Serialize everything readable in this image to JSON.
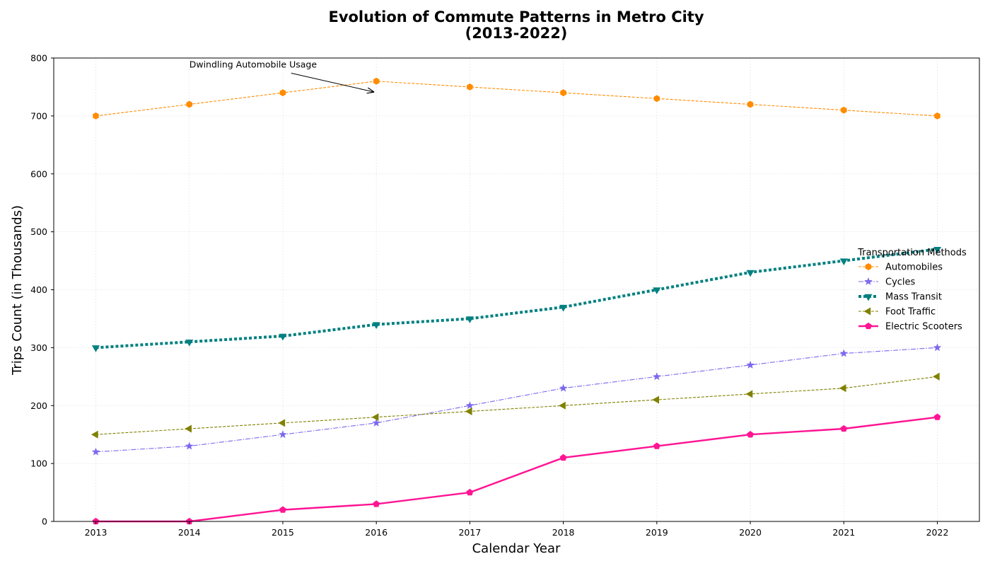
{
  "chart_data": {
    "type": "line",
    "title_line1": "Evolution of Commute Patterns in Metro City",
    "title_line2": "(2013-2022)",
    "xlabel": "Calendar Year",
    "ylabel": "Trips Count (in Thousands)",
    "x": [
      2013,
      2014,
      2015,
      2016,
      2017,
      2018,
      2019,
      2020,
      2021,
      2022
    ],
    "xlim": [
      2012.55,
      2022.45
    ],
    "ylim": [
      0,
      800
    ],
    "yticks": [
      0,
      100,
      200,
      300,
      400,
      500,
      600,
      700,
      800
    ],
    "grid": true,
    "legend_title": "Transportation Methods",
    "legend_position": "center-right",
    "series": [
      {
        "name": "Automobiles",
        "color": "#ff8c00",
        "dash": "dashed-thin",
        "marker": "hexagon",
        "values": [
          700,
          720,
          740,
          760,
          750,
          740,
          730,
          720,
          710,
          700
        ]
      },
      {
        "name": "Cycles",
        "color": "#7b68ee",
        "dash": "dashdot-thin",
        "marker": "star",
        "values": [
          120,
          130,
          150,
          170,
          200,
          230,
          250,
          270,
          290,
          300
        ]
      },
      {
        "name": "Mass Transit",
        "color": "#008080",
        "dash": "dotted-thick",
        "marker": "triangle-down",
        "values": [
          300,
          310,
          320,
          340,
          350,
          370,
          400,
          430,
          450,
          470
        ]
      },
      {
        "name": "Foot Traffic",
        "color": "#808000",
        "dash": "dashed-thin",
        "marker": "triangle-left",
        "values": [
          150,
          160,
          170,
          180,
          190,
          200,
          210,
          220,
          230,
          250
        ]
      },
      {
        "name": "Electric Scooters",
        "color": "#ff1493",
        "dash": "solid-thick",
        "marker": "pentagon",
        "values": [
          0,
          0,
          20,
          30,
          50,
          110,
          130,
          150,
          160,
          180
        ]
      }
    ],
    "annotation": {
      "text": "Dwindling Automobile Usage",
      "target_x": 2016,
      "target_y": 740,
      "text_x": 2014,
      "text_y": 780
    }
  }
}
